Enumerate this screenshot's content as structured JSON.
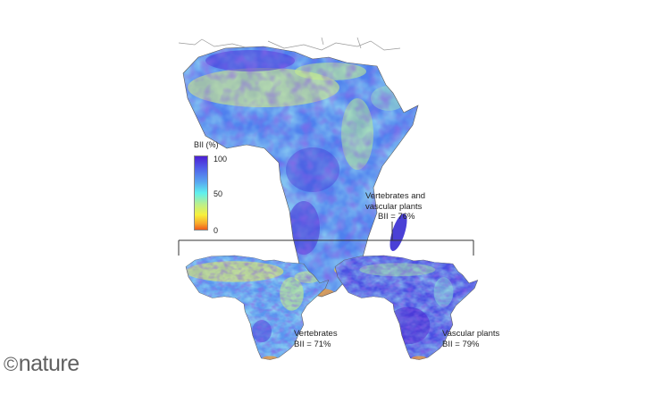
{
  "legend": {
    "title": "BII (%)",
    "ticks": [
      "100",
      "50",
      "0"
    ],
    "colors": [
      "#4b1fd3",
      "#4f5ae8",
      "#58a6f0",
      "#5ff0ee",
      "#b9ef8e",
      "#f7f13c",
      "#f8a62a",
      "#ef5a1c"
    ]
  },
  "maps": [
    {
      "caption_line1": "Vertebrates and",
      "caption_line2": "vascular plants",
      "caption_line3": "BII = 76%"
    },
    {
      "caption_line1": "Vertebrates",
      "caption_line2": "BII = 71%"
    },
    {
      "caption_line1": "Vascular plants",
      "caption_line2": "BII = 79%"
    }
  ],
  "logo": {
    "symbol": "©",
    "text": "nature"
  }
}
